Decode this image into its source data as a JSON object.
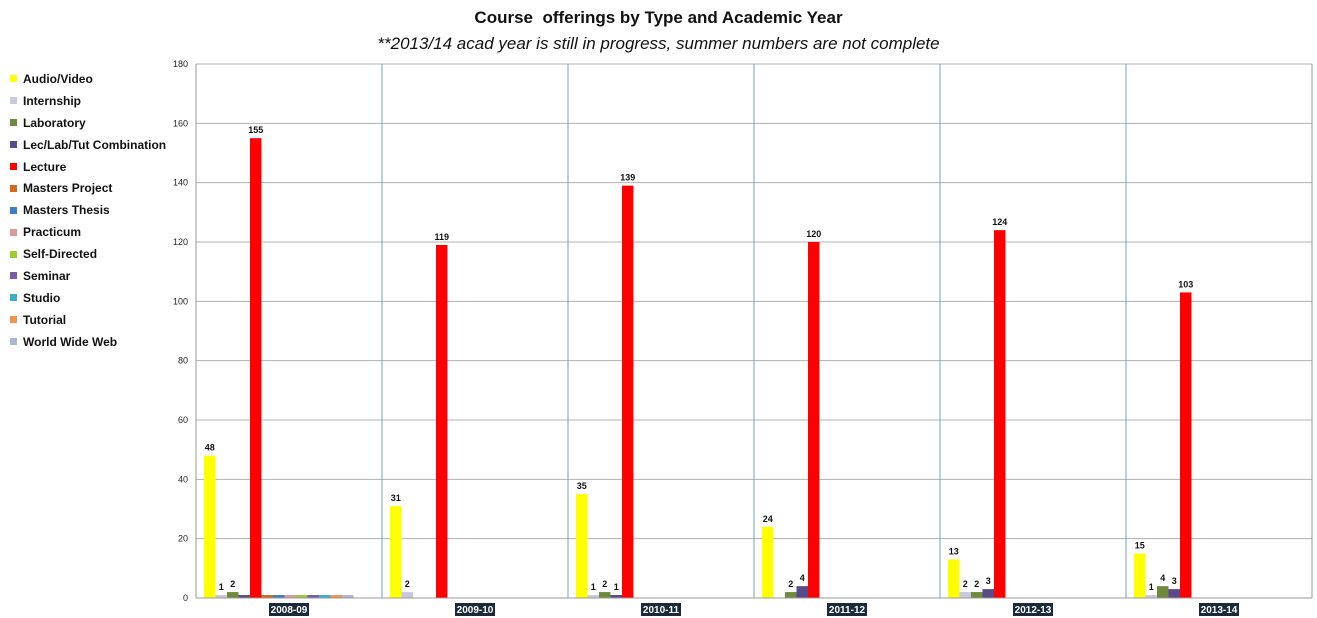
{
  "chart_data": {
    "type": "bar",
    "title": "Course  offerings by Type and Academic Year",
    "subtitle": "**2013/14 acad year is still in progress, summer numbers are not complete",
    "xlabel": "",
    "ylabel": "",
    "ylim": [
      0,
      180
    ],
    "yticks": [
      0,
      20,
      40,
      60,
      80,
      100,
      120,
      140,
      160,
      180
    ],
    "grid": true,
    "legend_position": "left",
    "categories": [
      "2008-09",
      "2009-10",
      "2010-11",
      "2011-12",
      "2012-13",
      "2013-14"
    ],
    "series": [
      {
        "name": "Audio/Video",
        "color": "#ffff00",
        "values": [
          48,
          31,
          35,
          24,
          13,
          15
        ],
        "labels": [
          "48",
          "31",
          "35",
          "24",
          "13",
          "15"
        ]
      },
      {
        "name": "Internship",
        "color": "#c8c8e0",
        "values": [
          1,
          2,
          1,
          0,
          2,
          1
        ],
        "labels": [
          "1",
          "2",
          "1",
          "",
          "2",
          "1"
        ]
      },
      {
        "name": "Laboratory",
        "color": "#6e8b3d",
        "values": [
          2,
          0,
          2,
          2,
          2,
          4
        ],
        "labels": [
          "2",
          "",
          "2",
          "2",
          "2",
          "4"
        ]
      },
      {
        "name": "Lec/Lab/Tut Combination",
        "color": "#5b4a8a",
        "values": [
          1,
          0,
          1,
          4,
          3,
          3
        ],
        "labels": [
          "",
          "",
          "1",
          "4",
          "3",
          "3"
        ]
      },
      {
        "name": "Lecture",
        "color": "#ff0000",
        "values": [
          155,
          119,
          139,
          120,
          124,
          103
        ],
        "labels": [
          "155",
          "119",
          "139",
          "120",
          "124",
          "103"
        ]
      },
      {
        "name": "Masters Project",
        "color": "#d2691e",
        "values": [
          1,
          0,
          0,
          0,
          0,
          0
        ],
        "labels": [
          "",
          "",
          "",
          "",
          "",
          ""
        ]
      },
      {
        "name": "Masters Thesis",
        "color": "#3a7fc0",
        "values": [
          1,
          0,
          0,
          0,
          0,
          0
        ],
        "labels": [
          "",
          "",
          "",
          "",
          "",
          ""
        ]
      },
      {
        "name": "Practicum",
        "color": "#d89a9a",
        "values": [
          1,
          0,
          0,
          0,
          0,
          0
        ],
        "labels": [
          "",
          "",
          "",
          "",
          "",
          ""
        ]
      },
      {
        "name": "Self-Directed",
        "color": "#9acd32",
        "values": [
          1,
          0,
          0,
          0,
          0,
          0
        ],
        "labels": [
          "",
          "",
          "",
          "",
          "",
          ""
        ]
      },
      {
        "name": "Seminar",
        "color": "#7b5aa6",
        "values": [
          1,
          0,
          0,
          0,
          0,
          0
        ],
        "labels": [
          "",
          "",
          "",
          "",
          "",
          ""
        ]
      },
      {
        "name": "Studio",
        "color": "#3ab0c8",
        "values": [
          1,
          0,
          0,
          0,
          0,
          0
        ],
        "labels": [
          "",
          "",
          "",
          "",
          "",
          ""
        ]
      },
      {
        "name": "Tutorial",
        "color": "#f4944a",
        "values": [
          1,
          0,
          0,
          0,
          0,
          0
        ],
        "labels": [
          "",
          "",
          "",
          "",
          "",
          ""
        ]
      },
      {
        "name": "World Wide Web",
        "color": "#aab8d0",
        "values": [
          1,
          0,
          0,
          0,
          0,
          0
        ],
        "labels": [
          "",
          "",
          "",
          "",
          "",
          ""
        ]
      }
    ],
    "colors": {
      "gridline": "#b0b0b0",
      "category_divider": "#6fa8bd",
      "category_label_bg": "#1b2a3a"
    }
  }
}
